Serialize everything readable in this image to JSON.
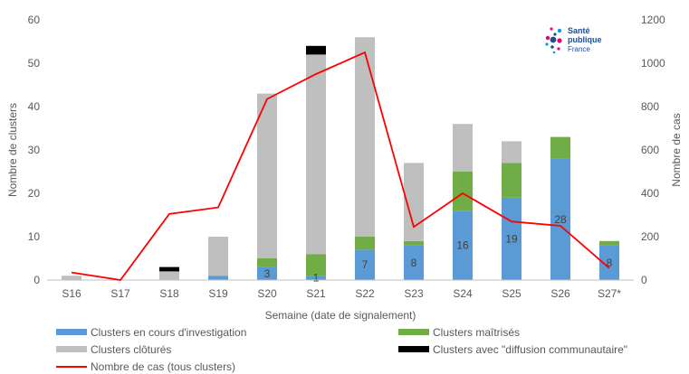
{
  "chart_data": {
    "type": "bar",
    "stacked": true,
    "categories": [
      "S16",
      "S17",
      "S18",
      "S19",
      "S20",
      "S21",
      "S22",
      "S23",
      "S24",
      "S25",
      "S26",
      "S27*"
    ],
    "xlabel": "Semaine (date de signalement)",
    "ylabel": "Nombre de clusters",
    "y2label": "Nombre de cas",
    "ylim": [
      0,
      60
    ],
    "y2lim": [
      0,
      1200
    ],
    "yticks": [
      0,
      10,
      20,
      30,
      40,
      50,
      60
    ],
    "y2ticks": [
      0,
      200,
      400,
      600,
      800,
      1000,
      1200
    ],
    "grid": false,
    "legend_position": "bottom",
    "series": [
      {
        "name": "Clusters en cours d'investigation",
        "type": "bar",
        "axis": "left",
        "color": "#5b9bd5",
        "values": [
          0,
          0,
          0,
          1,
          3,
          1,
          7,
          8,
          16,
          19,
          28,
          8
        ],
        "data_labels": [
          "",
          "",
          "",
          "",
          "3",
          "1",
          "7",
          "8",
          "16",
          "19",
          "28",
          "8"
        ]
      },
      {
        "name": "Clusters maîtrisés",
        "type": "bar",
        "axis": "left",
        "color": "#70ad47",
        "values": [
          0,
          0,
          0,
          0,
          2,
          5,
          3,
          1,
          9,
          8,
          5,
          1
        ]
      },
      {
        "name": "Clusters clôturés",
        "type": "bar",
        "axis": "left",
        "color": "#bfbfbf",
        "values": [
          1,
          0,
          2,
          9,
          38,
          46,
          46,
          18,
          11,
          5,
          0,
          0
        ]
      },
      {
        "name": "Clusters avec \"diffusion communautaire\"",
        "type": "bar",
        "axis": "left",
        "color": "#000000",
        "values": [
          0,
          0,
          1,
          0,
          0,
          2,
          0,
          0,
          0,
          0,
          0,
          0
        ]
      },
      {
        "name": "Nombre de cas (tous clusters)",
        "type": "line",
        "axis": "right",
        "color": "#ff0000",
        "values": [
          35,
          0,
          305,
          335,
          835,
          950,
          1050,
          245,
          400,
          270,
          250,
          55
        ]
      }
    ]
  },
  "logo": {
    "line1": "Santé",
    "line2": "publique",
    "line3": "France"
  }
}
